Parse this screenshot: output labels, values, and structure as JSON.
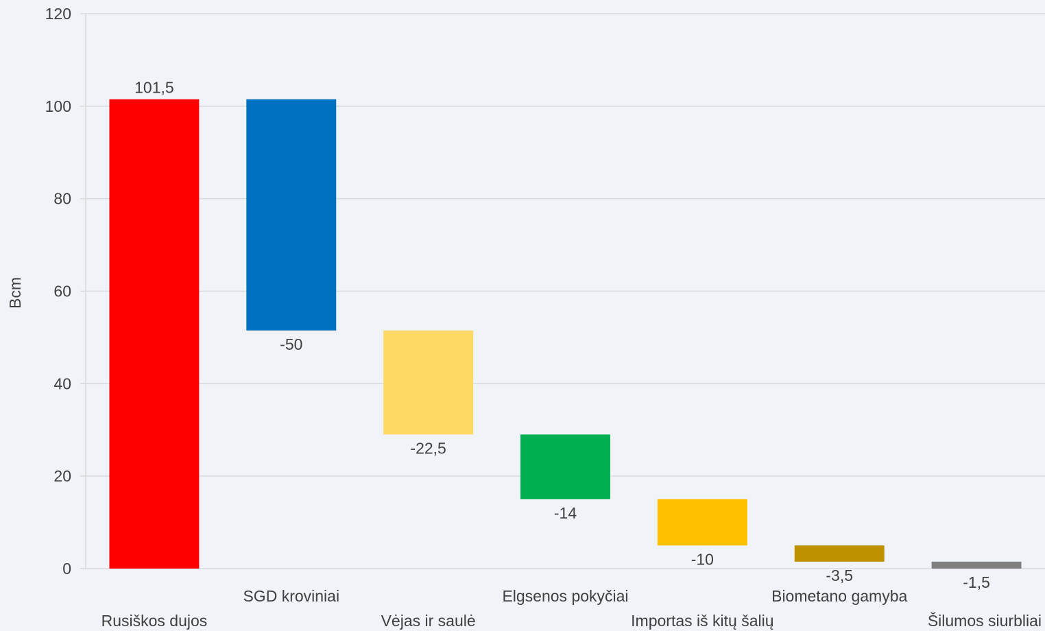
{
  "chart_data": {
    "type": "bar",
    "subtype": "waterfall",
    "ylabel": "Bcm",
    "ylim": [
      0,
      120
    ],
    "yticks": [
      0,
      20,
      40,
      60,
      80,
      100,
      120
    ],
    "ytick_labels": [
      "0",
      "20",
      "40",
      "60",
      "80",
      "100",
      "120"
    ],
    "grid": true,
    "categories": [
      "Rusiškos dujos",
      "SGD kroviniai",
      "Vėjas ir saulė",
      "Elgsenos pokyčiai",
      "Importas iš kitų šalių",
      "Biometano gamyba",
      "Šilumos siurbliai"
    ],
    "values": [
      101.5,
      -50,
      -22.5,
      -14,
      -10,
      -3.5,
      -1.5
    ],
    "data_labels": [
      "101,5",
      "-50",
      "-22,5",
      "-14",
      "-10",
      "-3,5",
      "-1,5"
    ],
    "colors": [
      "#ff0000",
      "#0070c0",
      "#ffd966",
      "#00b050",
      "#ffc000",
      "#bf9000",
      "#7f7f7f"
    ]
  }
}
